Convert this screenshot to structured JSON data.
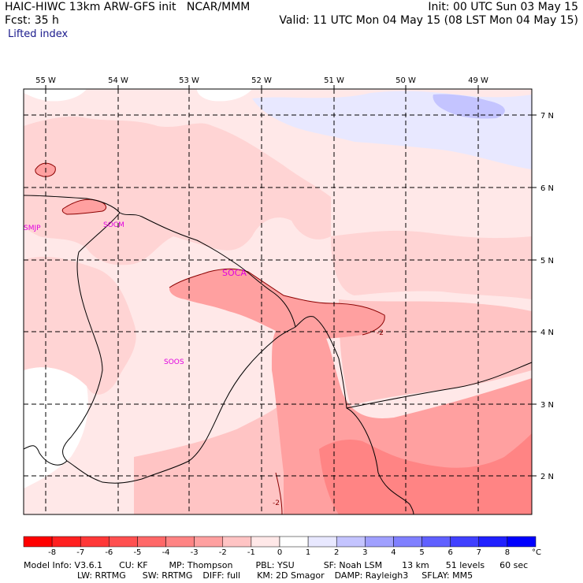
{
  "header": {
    "title_left": "HAIC-HIWC 13km ARW-GFS init",
    "org": "NCAR/MMM",
    "init": "Init: 00 UTC Sun 03 May 15",
    "fcst": "Fcst:   35 h",
    "valid": "Valid: 11 UTC Mon 04 May 15 (08 LST Mon 04 May 15)",
    "field": "Lifted index"
  },
  "map": {
    "lon_labels": [
      "55 W",
      "54 W",
      "53 W",
      "52 W",
      "51 W",
      "50 W",
      "49 W"
    ],
    "lat_labels": [
      "7 N",
      "6 N",
      "5 N",
      "4 N",
      "3 N",
      "2 N"
    ],
    "stations": [
      "SMJP",
      "SOCM",
      "SOCA",
      "SOOS"
    ],
    "contour_labels": [
      "-2",
      "-2"
    ]
  },
  "colorbar": {
    "ticks": [
      "-8",
      "-7",
      "-6",
      "-5",
      "-4",
      "-3",
      "-2",
      "-1",
      "0",
      "1",
      "2",
      "3",
      "4",
      "5",
      "6",
      "7",
      "8"
    ],
    "unit": "°C",
    "colors": [
      "#ff0000",
      "#ff2020",
      "#ff3838",
      "#ff5050",
      "#ff6868",
      "#ff8484",
      "#ffa0a0",
      "#ffc4c4",
      "#ffe8e8",
      "#ffffff",
      "#e8e8ff",
      "#c4c4ff",
      "#a0a0ff",
      "#8080ff",
      "#6060ff",
      "#4040ff",
      "#2020ff",
      "#0000ff"
    ]
  },
  "footer": {
    "line1": [
      "Model Info: V3.6.1",
      "CU: KF",
      "MP: Thompson",
      "PBL: YSU",
      "SF: Noah LSM",
      "13 km",
      "51 levels",
      "60 sec"
    ],
    "line2": [
      "LW: RRTMG",
      "SW: RRTMG",
      "DIFF: full",
      "KM: 2D Smagor",
      "DAMP: Rayleigh3",
      "SFLAY: MM5"
    ]
  }
}
